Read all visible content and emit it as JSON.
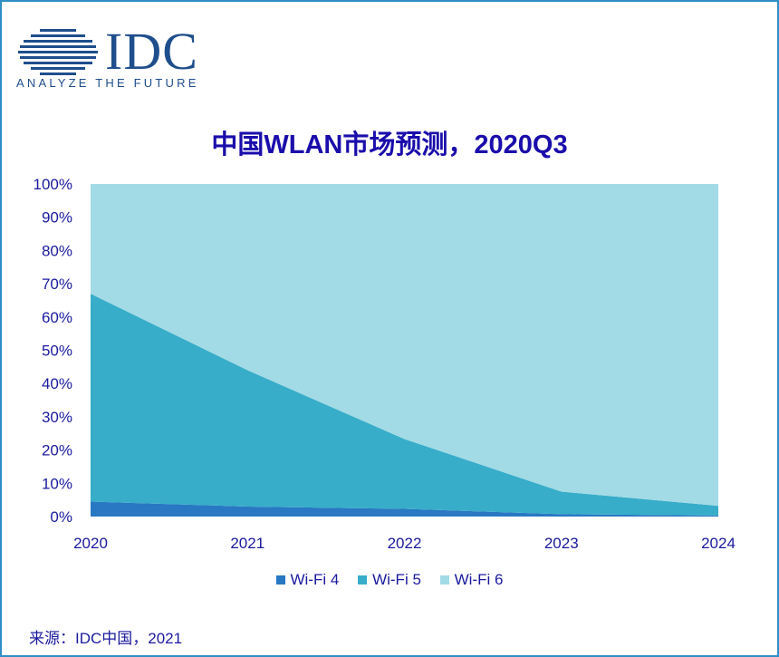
{
  "logo": {
    "name": "IDC",
    "tagline": "ANALYZE THE FUTURE"
  },
  "colors": {
    "wifi4": "#2878c3",
    "wifi5": "#38adc9",
    "wifi6": "#a2dbe5",
    "text": "#1a1a9e",
    "title": "#1a0dab",
    "border": "#2f8fc4"
  },
  "source_text": "来源：IDC中国，2021",
  "chart_data": {
    "type": "area",
    "stacked": true,
    "title": "中国WLAN市场预测，2020Q3",
    "categories": [
      "2020",
      "2021",
      "2022",
      "2023",
      "2024"
    ],
    "series": [
      {
        "name": "Wi-Fi 4",
        "values": [
          4.5,
          3,
          2.3,
          0.7,
          0.3
        ]
      },
      {
        "name": "Wi-Fi 5",
        "values": [
          62.5,
          41,
          21,
          6.8,
          2.9
        ]
      },
      {
        "name": "Wi-Fi 6",
        "values": [
          33,
          56,
          76.7,
          92.5,
          96.8
        ]
      }
    ],
    "ylim": [
      0,
      100
    ],
    "yticks": [
      "0%",
      "10%",
      "20%",
      "30%",
      "40%",
      "50%",
      "60%",
      "70%",
      "80%",
      "90%",
      "100%"
    ],
    "legend_position": "bottom",
    "grid": false
  }
}
